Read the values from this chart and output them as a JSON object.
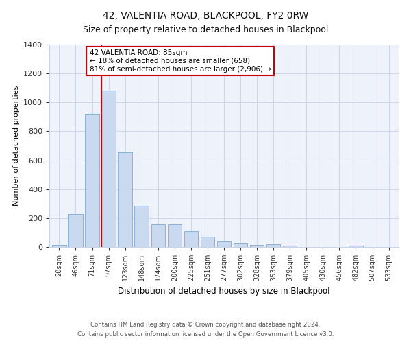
{
  "title": "42, VALENTIA ROAD, BLACKPOOL, FY2 0RW",
  "subtitle": "Size of property relative to detached houses in Blackpool",
  "xlabel": "Distribution of detached houses by size in Blackpool",
  "ylabel": "Number of detached properties",
  "bar_color": "#c9d9f0",
  "bar_edge_color": "#7aaad4",
  "categories": [
    "20sqm",
    "46sqm",
    "71sqm",
    "97sqm",
    "123sqm",
    "148sqm",
    "174sqm",
    "200sqm",
    "225sqm",
    "251sqm",
    "277sqm",
    "302sqm",
    "328sqm",
    "353sqm",
    "379sqm",
    "405sqm",
    "430sqm",
    "456sqm",
    "482sqm",
    "507sqm",
    "533sqm"
  ],
  "values": [
    15,
    228,
    920,
    1080,
    655,
    285,
    158,
    158,
    108,
    73,
    40,
    27,
    15,
    20,
    10,
    0,
    0,
    0,
    8,
    0,
    0
  ],
  "vline_color": "#cc0000",
  "ylim": [
    0,
    1400
  ],
  "yticks": [
    0,
    200,
    400,
    600,
    800,
    1000,
    1200,
    1400
  ],
  "annotation_title": "42 VALENTIA ROAD: 85sqm",
  "annotation_line1": "← 18% of detached houses are smaller (658)",
  "annotation_line2": "81% of semi-detached houses are larger (2,906) →",
  "annotation_box_color": "#ffffff",
  "annotation_box_edge_color": "#cc0000",
  "footnote1": "Contains HM Land Registry data © Crown copyright and database right 2024.",
  "footnote2": "Contains public sector information licensed under the Open Government Licence v3.0."
}
